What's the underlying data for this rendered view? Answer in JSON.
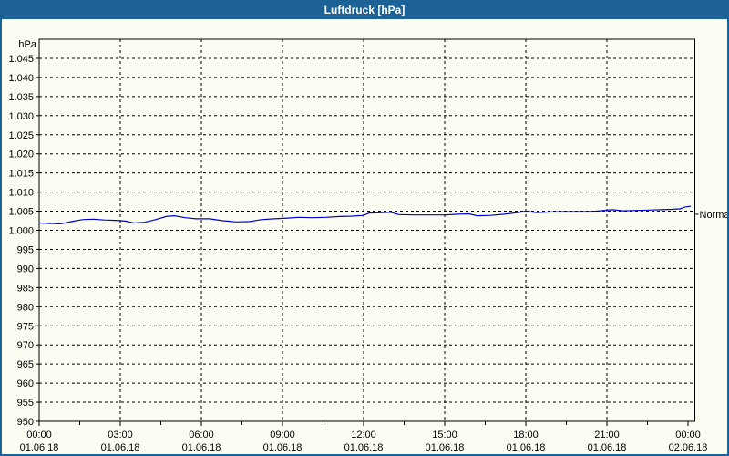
{
  "window": {
    "title": "Luftdruck [hPa]"
  },
  "colors": {
    "frame": "#1d6296",
    "titlebar_bg": "#1d6296",
    "title_text": "#ffffff",
    "background": "#fcfdf2",
    "grid": "#000000",
    "axis": "#000000",
    "line": "#0000cd",
    "label_text": "#000000"
  },
  "chart_data": {
    "type": "line",
    "title": "Luftdruck [hPa]",
    "y_unit_label": "hPa",
    "ylim": [
      950,
      1050
    ],
    "y_tick_step": 5,
    "y_ticks": [
      {
        "value": 950,
        "label": "950"
      },
      {
        "value": 955,
        "label": "955"
      },
      {
        "value": 960,
        "label": "960"
      },
      {
        "value": 965,
        "label": "965"
      },
      {
        "value": 970,
        "label": "970"
      },
      {
        "value": 975,
        "label": "975"
      },
      {
        "value": 980,
        "label": "980"
      },
      {
        "value": 985,
        "label": "985"
      },
      {
        "value": 990,
        "label": "990"
      },
      {
        "value": 995,
        "label": "995"
      },
      {
        "value": 1000,
        "label": "1.000"
      },
      {
        "value": 1005,
        "label": "1.005"
      },
      {
        "value": 1010,
        "label": "1.010"
      },
      {
        "value": 1015,
        "label": "1.015"
      },
      {
        "value": 1020,
        "label": "1.020"
      },
      {
        "value": 1025,
        "label": "1.025"
      },
      {
        "value": 1030,
        "label": "1.030"
      },
      {
        "value": 1035,
        "label": "1.035"
      },
      {
        "value": 1040,
        "label": "1.040"
      },
      {
        "value": 1045,
        "label": "1.045"
      }
    ],
    "xlim_hours": [
      0,
      24.25
    ],
    "x_ticks": [
      {
        "hour": 0,
        "time": "00:00",
        "date": "01.06.18"
      },
      {
        "hour": 3,
        "time": "03:00",
        "date": "01.06.18"
      },
      {
        "hour": 6,
        "time": "06:00",
        "date": "01.06.18"
      },
      {
        "hour": 9,
        "time": "09:00",
        "date": "01.06.18"
      },
      {
        "hour": 12,
        "time": "12:00",
        "date": "01.06.18"
      },
      {
        "hour": 15,
        "time": "15:00",
        "date": "01.06.18"
      },
      {
        "hour": 18,
        "time": "18:00",
        "date": "01.06.18"
      },
      {
        "hour": 21,
        "time": "21:00",
        "date": "01.06.18"
      },
      {
        "hour": 24,
        "time": "00:00",
        "date": "02.06.18"
      }
    ],
    "x_minor_tick_step_hours": 1.5,
    "grid": "dashed",
    "normal_marker": {
      "label": "Normal",
      "value": 1004.2
    },
    "series": [
      {
        "name": "Luftdruck",
        "color": "#0000cd",
        "points": [
          [
            0.0,
            1001.9
          ],
          [
            0.4,
            1001.8
          ],
          [
            0.8,
            1001.7
          ],
          [
            1.2,
            1002.3
          ],
          [
            1.6,
            1002.8
          ],
          [
            2.0,
            1002.9
          ],
          [
            2.4,
            1002.7
          ],
          [
            2.8,
            1002.6
          ],
          [
            3.2,
            1002.4
          ],
          [
            3.5,
            1001.9
          ],
          [
            3.9,
            1002.1
          ],
          [
            4.3,
            1002.8
          ],
          [
            4.7,
            1003.6
          ],
          [
            5.0,
            1003.8
          ],
          [
            5.4,
            1003.3
          ],
          [
            5.8,
            1003.0
          ],
          [
            6.3,
            1003.0
          ],
          [
            6.8,
            1002.5
          ],
          [
            7.3,
            1002.2
          ],
          [
            7.8,
            1002.3
          ],
          [
            8.2,
            1002.8
          ],
          [
            8.7,
            1003.0
          ],
          [
            9.2,
            1003.2
          ],
          [
            9.6,
            1003.4
          ],
          [
            10.1,
            1003.3
          ],
          [
            10.6,
            1003.4
          ],
          [
            11.1,
            1003.6
          ],
          [
            11.6,
            1003.7
          ],
          [
            12.0,
            1003.9
          ],
          [
            12.2,
            1004.5
          ],
          [
            12.7,
            1004.6
          ],
          [
            13.0,
            1004.7
          ],
          [
            13.3,
            1004.1
          ],
          [
            13.9,
            1004.0
          ],
          [
            14.5,
            1004.0
          ],
          [
            15.0,
            1004.0
          ],
          [
            15.5,
            1004.2
          ],
          [
            15.9,
            1004.3
          ],
          [
            16.2,
            1003.8
          ],
          [
            16.7,
            1003.9
          ],
          [
            17.2,
            1004.2
          ],
          [
            17.7,
            1004.6
          ],
          [
            18.0,
            1005.0
          ],
          [
            18.4,
            1004.6
          ],
          [
            18.9,
            1004.8
          ],
          [
            19.4,
            1004.9
          ],
          [
            19.9,
            1004.9
          ],
          [
            20.4,
            1004.9
          ],
          [
            20.9,
            1005.2
          ],
          [
            21.2,
            1005.4
          ],
          [
            21.6,
            1005.1
          ],
          [
            22.1,
            1005.2
          ],
          [
            22.6,
            1005.3
          ],
          [
            23.0,
            1005.4
          ],
          [
            23.4,
            1005.5
          ],
          [
            23.7,
            1005.6
          ],
          [
            23.9,
            1006.1
          ],
          [
            24.1,
            1006.3
          ]
        ]
      }
    ]
  }
}
